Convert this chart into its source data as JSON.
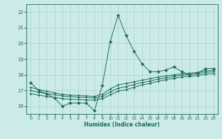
{
  "title": "",
  "xlabel": "Humidex (Indice chaleur)",
  "ylabel": "",
  "bg_color": "#cceae7",
  "grid_color": "#aad4d0",
  "line_color": "#1a6b5a",
  "xlim": [
    -0.5,
    23.5
  ],
  "ylim": [
    15.5,
    22.5
  ],
  "yticks": [
    16,
    17,
    18,
    19,
    20,
    21,
    22
  ],
  "xticks": [
    0,
    1,
    2,
    3,
    4,
    5,
    6,
    7,
    8,
    9,
    10,
    11,
    12,
    13,
    14,
    15,
    16,
    17,
    18,
    19,
    20,
    21,
    22,
    23
  ],
  "figsize": [
    3.2,
    2.0
  ],
  "dpi": 100,
  "series": [
    {
      "x": [
        0,
        1,
        2,
        3,
        4,
        5,
        6,
        7,
        8,
        9,
        10,
        11,
        12,
        13,
        14,
        15,
        16,
        17,
        18,
        19,
        20,
        21,
        22,
        23
      ],
      "y": [
        17.5,
        17.0,
        16.8,
        16.5,
        16.0,
        16.2,
        16.2,
        16.2,
        15.7,
        17.3,
        20.1,
        21.8,
        20.5,
        19.5,
        18.7,
        18.2,
        18.2,
        18.3,
        18.5,
        18.2,
        18.0,
        18.1,
        18.4,
        18.4
      ],
      "marker": "*",
      "ms": 3
    },
    {
      "x": [
        0,
        1,
        2,
        3,
        4,
        5,
        6,
        7,
        8,
        9,
        10,
        11,
        12,
        13,
        14,
        15,
        16,
        17,
        18,
        19,
        20,
        21,
        22,
        23
      ],
      "y": [
        17.2,
        17.05,
        16.95,
        16.85,
        16.75,
        16.7,
        16.68,
        16.65,
        16.62,
        16.75,
        17.1,
        17.35,
        17.45,
        17.55,
        17.65,
        17.75,
        17.85,
        17.92,
        18.0,
        18.05,
        18.1,
        18.15,
        18.25,
        18.3
      ],
      "marker": "+",
      "ms": 3
    },
    {
      "x": [
        0,
        1,
        2,
        3,
        4,
        5,
        6,
        7,
        8,
        9,
        10,
        11,
        12,
        13,
        14,
        15,
        16,
        17,
        18,
        19,
        20,
        21,
        22,
        23
      ],
      "y": [
        17.0,
        16.88,
        16.8,
        16.72,
        16.65,
        16.6,
        16.58,
        16.55,
        16.52,
        16.62,
        16.9,
        17.15,
        17.25,
        17.38,
        17.5,
        17.6,
        17.72,
        17.8,
        17.9,
        17.97,
        18.02,
        18.07,
        18.15,
        18.2
      ],
      "marker": "+",
      "ms": 3
    },
    {
      "x": [
        0,
        1,
        2,
        3,
        4,
        5,
        6,
        7,
        8,
        9,
        10,
        11,
        12,
        13,
        14,
        15,
        16,
        17,
        18,
        19,
        20,
        21,
        22,
        23
      ],
      "y": [
        16.8,
        16.7,
        16.62,
        16.55,
        16.48,
        16.44,
        16.42,
        16.4,
        16.38,
        16.48,
        16.72,
        16.95,
        17.05,
        17.2,
        17.35,
        17.45,
        17.58,
        17.68,
        17.78,
        17.86,
        17.9,
        17.95,
        18.04,
        18.08
      ],
      "marker": "+",
      "ms": 3
    }
  ]
}
